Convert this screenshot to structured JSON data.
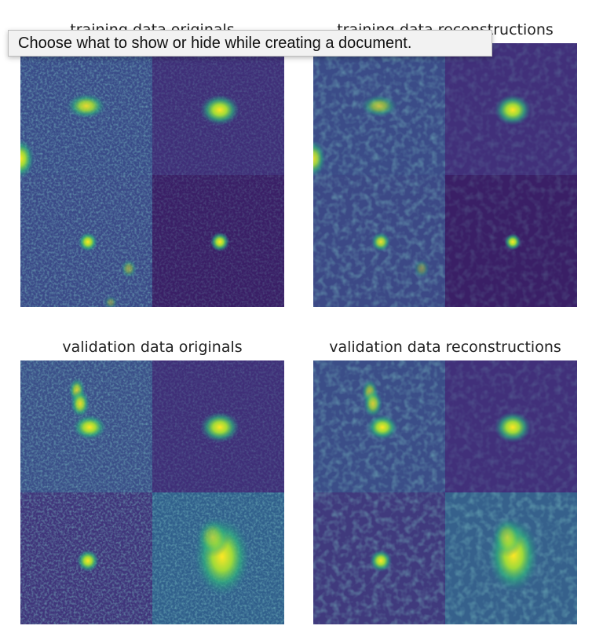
{
  "panels": [
    {
      "title": "training data originals"
    },
    {
      "title": "training data reconstructions"
    },
    {
      "title": "validation data originals"
    },
    {
      "title": "validation data reconstructions"
    }
  ],
  "tooltip": {
    "text": "Choose what to show or hide while creating a document."
  }
}
